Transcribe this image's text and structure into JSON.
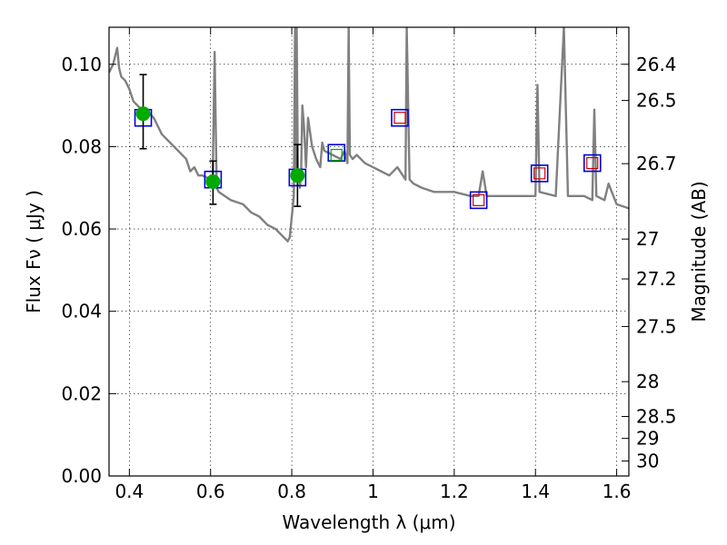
{
  "chart_data": {
    "type": "scatter",
    "xlabel": "Wavelength  λ (μm)",
    "ylabel": "Flux  Fν  ( μJy )",
    "y2label": "Magnitude (AB)",
    "xlim": [
      0.35,
      1.63
    ],
    "ylim": [
      0.0,
      0.109
    ],
    "grid": true,
    "x_ticks": [
      0.4,
      0.6,
      0.8,
      1.0,
      1.2,
      1.4,
      1.6
    ],
    "x_tick_labels": [
      "0.4",
      "0.6",
      "0.8",
      "1",
      "1.2",
      "1.4",
      "1.6"
    ],
    "y_ticks": [
      0.0,
      0.02,
      0.04,
      0.06,
      0.08,
      0.1
    ],
    "y_tick_labels": [
      "0.00",
      "0.02",
      "0.04",
      "0.06",
      "0.08",
      "0.10"
    ],
    "mag_ticks": [
      26.4,
      26.5,
      26.7,
      27,
      27.2,
      27.5,
      28,
      28.5,
      29,
      30
    ],
    "mag_tick_labels": [
      "26.4",
      "26.5",
      "26.7",
      "27",
      "27.2",
      "27.5",
      "28",
      "28.5",
      "29",
      "30"
    ],
    "colors": {
      "template": "#808080",
      "observed": "#00aa00",
      "model_box": "#0000dd",
      "inner_red": "#cc0000",
      "inner_green": "#00aa00",
      "errorbar": "#000000"
    },
    "series": [
      {
        "marker": "line",
        "x": [
          0.35,
          0.36,
          0.37,
          0.375,
          0.38,
          0.39,
          0.4,
          0.41,
          0.42,
          0.43,
          0.44,
          0.45,
          0.46,
          0.47,
          0.48,
          0.5,
          0.52,
          0.54,
          0.55,
          0.56,
          0.57,
          0.58,
          0.6,
          0.605,
          0.61,
          0.615,
          0.62,
          0.65,
          0.68,
          0.7,
          0.72,
          0.74,
          0.76,
          0.78,
          0.79,
          0.795,
          0.8,
          0.805,
          0.808,
          0.81,
          0.812,
          0.815,
          0.818,
          0.82,
          0.823,
          0.826,
          0.83,
          0.835,
          0.84,
          0.85,
          0.86,
          0.87,
          0.875,
          0.88,
          0.9,
          0.92,
          0.93,
          0.937,
          0.94,
          0.943,
          0.95,
          0.96,
          0.98,
          1.0,
          1.02,
          1.04,
          1.06,
          1.08,
          1.083,
          1.09,
          1.1,
          1.12,
          1.15,
          1.2,
          1.24,
          1.26,
          1.27,
          1.28,
          1.3,
          1.35,
          1.38,
          1.4,
          1.405,
          1.41,
          1.45,
          1.47,
          1.48,
          1.5,
          1.52,
          1.54,
          1.545,
          1.55,
          1.57,
          1.58,
          1.6,
          1.63
        ],
        "y": [
          0.098,
          0.1,
          0.104,
          0.099,
          0.097,
          0.096,
          0.094,
          0.091,
          0.09,
          0.089,
          0.089,
          0.088,
          0.087,
          0.085,
          0.083,
          0.081,
          0.079,
          0.077,
          0.074,
          0.075,
          0.073,
          0.073,
          0.072,
          0.071,
          0.103,
          0.07,
          0.069,
          0.067,
          0.066,
          0.064,
          0.063,
          0.061,
          0.06,
          0.058,
          0.057,
          0.058,
          0.063,
          0.068,
          0.109,
          0.075,
          0.109,
          0.074,
          0.073,
          0.07,
          0.074,
          0.09,
          0.085,
          0.075,
          0.087,
          0.08,
          0.077,
          0.075,
          0.081,
          0.079,
          0.078,
          0.077,
          0.079,
          0.076,
          0.109,
          0.078,
          0.077,
          0.078,
          0.076,
          0.075,
          0.074,
          0.073,
          0.075,
          0.072,
          0.109,
          0.072,
          0.071,
          0.07,
          0.069,
          0.069,
          0.068,
          0.068,
          0.074,
          0.068,
          0.068,
          0.068,
          0.068,
          0.068,
          0.095,
          0.069,
          0.068,
          0.109,
          0.068,
          0.068,
          0.068,
          0.067,
          0.089,
          0.068,
          0.067,
          0.071,
          0.066,
          0.065
        ]
      },
      {
        "marker": "filled-circle-with-errorbar",
        "x": [
          0.434,
          0.606,
          0.814
        ],
        "y": [
          0.088,
          0.0715,
          0.073
        ],
        "err_low": [
          0.0085,
          0.0055,
          0.0075
        ],
        "err_high": [
          0.0095,
          0.005,
          0.0075
        ]
      },
      {
        "marker": "open-square",
        "x": [
          0.434,
          0.606,
          0.814,
          0.91,
          1.066,
          1.26,
          1.41,
          1.54
        ],
        "y": [
          0.087,
          0.072,
          0.0725,
          0.0785,
          0.087,
          0.067,
          0.0735,
          0.076
        ]
      },
      {
        "marker": "small-open-square",
        "x": [
          0.91,
          1.066,
          1.26,
          1.41,
          1.54
        ],
        "y": [
          0.078,
          0.087,
          0.067,
          0.0735,
          0.076
        ]
      }
    ]
  }
}
